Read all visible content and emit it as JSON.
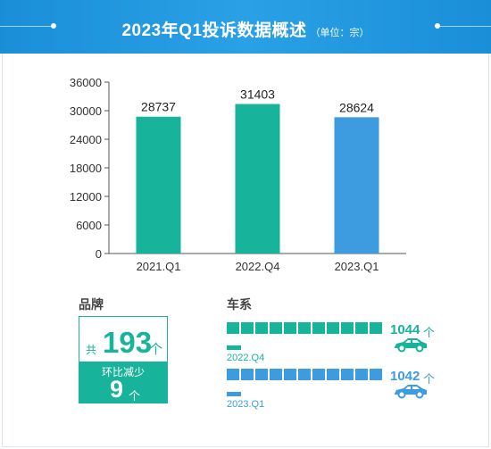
{
  "header": {
    "title": "2023年Q1投诉数据概述",
    "unit": "（单位：宗）"
  },
  "chart_data": {
    "type": "bar",
    "categories": [
      "2021.Q1",
      "2022.Q4",
      "2023.Q1"
    ],
    "values": [
      28737,
      31403,
      28624
    ],
    "value_labels": [
      "28737",
      "31403",
      "28624"
    ],
    "bar_colors": [
      "#17b39a",
      "#17b39a",
      "#3d9be0"
    ],
    "ylim": [
      0,
      36000
    ],
    "yticks": [
      0,
      6000,
      12000,
      18000,
      24000,
      30000,
      36000
    ],
    "ytick_labels": [
      "0",
      "6000",
      "12000",
      "18000",
      "24000",
      "30000",
      "36000"
    ],
    "title": "",
    "xlabel": "",
    "ylabel": ""
  },
  "brand": {
    "title": "品牌",
    "prefix": "共",
    "count": "193",
    "count_unit": "个",
    "change_label": "环比减少",
    "change": "9",
    "change_unit": "个"
  },
  "series": {
    "title": "车系",
    "rows": [
      {
        "label": "2022.Q4",
        "value": "1044",
        "unit": "个",
        "value_num": 1044,
        "color": "#17b39a"
      },
      {
        "label": "2023.Q1",
        "value": "1042",
        "unit": "个",
        "value_num": 1042,
        "color": "#3d9be0"
      }
    ],
    "car_icon": "car-icon"
  },
  "colors": {
    "header": "#1a8fd8",
    "green": "#17b39a",
    "blue": "#3d9be0"
  }
}
